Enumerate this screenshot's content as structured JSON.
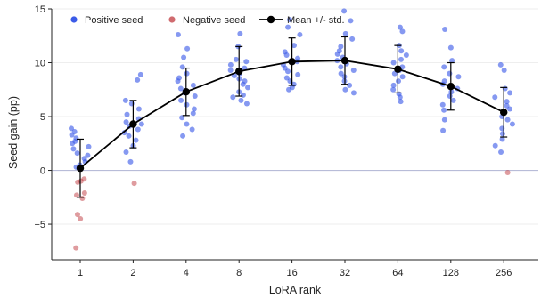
{
  "chart_data": {
    "type": "scatter",
    "xlabel": "LoRA rank",
    "ylabel": "Seed gain (pp)",
    "categories": [
      "1",
      "2",
      "4",
      "8",
      "16",
      "32",
      "64",
      "128",
      "256"
    ],
    "ylim": [
      -8.3,
      15
    ],
    "yticks": [
      -5,
      0,
      5,
      10,
      15
    ],
    "grid": "horizontal",
    "legend_placement": "top-left",
    "colors": {
      "positive": "#3b5be8",
      "negative": "#c0393f",
      "mean": "#000000",
      "zero_line": "#b8bcd8",
      "grid": "#eeeeee"
    },
    "series": [
      {
        "name": "Positive seed",
        "points": [
          [
            3.9,
            3.6,
            3.3,
            3.0,
            2.7,
            2.5,
            2.2,
            2.0,
            1.6,
            1.4,
            1.1,
            0.8,
            0.5,
            0.3,
            0.2
          ],
          [
            8.9,
            8.4,
            6.5,
            6.2,
            5.7,
            5.2,
            4.8,
            4.5,
            4.3,
            4.1,
            3.8,
            3.5,
            3.2,
            2.8,
            2.3,
            1.7,
            0.8
          ],
          [
            12.6,
            11.3,
            10.5,
            9.6,
            9.0,
            8.6,
            8.3,
            7.9,
            7.6,
            7.2,
            6.9,
            6.5,
            6.1,
            5.7,
            5.3,
            4.9,
            4.3,
            3.8,
            3.2
          ],
          [
            12.7,
            11.5,
            10.3,
            10.1,
            9.8,
            9.5,
            9.3,
            9.0,
            8.8,
            8.5,
            8.3,
            8.0,
            7.7,
            7.3,
            7.0,
            6.8,
            6.5,
            6.2
          ],
          [
            14.0,
            13.3,
            12.6,
            11.6,
            11.0,
            10.7,
            10.4,
            10.1,
            9.8,
            9.5,
            9.2,
            8.9,
            8.6,
            8.3,
            8.0,
            7.7,
            7.5
          ],
          [
            14.8,
            13.9,
            12.7,
            12.2,
            11.5,
            11.1,
            10.8,
            10.5,
            10.2,
            9.9,
            9.6,
            9.3,
            9.0,
            8.7,
            8.3,
            7.9,
            7.5,
            7.2
          ],
          [
            13.3,
            12.9,
            11.6,
            11.1,
            10.7,
            10.3,
            10.0,
            9.6,
            9.3,
            9.0,
            8.7,
            8.3,
            7.9,
            7.5,
            7.1,
            6.8,
            6.4
          ],
          [
            13.1,
            11.4,
            10.2,
            9.6,
            9.0,
            8.7,
            8.3,
            8.0,
            7.6,
            7.3,
            6.9,
            6.5,
            6.1,
            5.6,
            4.7,
            3.7
          ],
          [
            9.8,
            9.3,
            7.6,
            7.2,
            6.8,
            6.4,
            6.0,
            5.7,
            5.4,
            5.0,
            4.7,
            4.3,
            3.9,
            3.4,
            2.9,
            2.3,
            1.7
          ]
        ]
      },
      {
        "name": "Negative seed",
        "points": [
          [
            -0.8,
            -1.0,
            -1.1,
            -2.1,
            -2.3,
            -2.6,
            -4.1,
            -4.5,
            -7.2
          ],
          [
            -1.2
          ],
          [],
          [],
          [],
          [],
          [],
          [],
          [
            -0.2
          ]
        ]
      },
      {
        "name": "Mean +/- std.",
        "values": [
          0.2,
          4.3,
          7.3,
          9.2,
          10.1,
          10.2,
          9.4,
          7.8,
          5.4
        ],
        "std": [
          2.7,
          2.2,
          2.2,
          2.3,
          2.2,
          2.2,
          2.2,
          2.2,
          2.3
        ]
      }
    ]
  }
}
